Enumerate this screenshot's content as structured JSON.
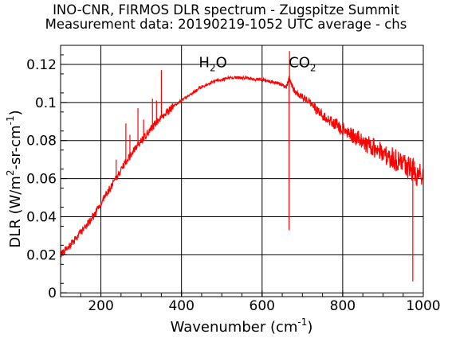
{
  "chart_data": {
    "type": "line",
    "title": "INO-CNR, FIRMOS DLR spectrum - Zugspitze Summit",
    "subtitle": "Measurement data: 20190219-1052 UTC average - chs",
    "xlabel": {
      "text": "Wavenumber (cm",
      "sup": "-1",
      "after": ")"
    },
    "ylabel": {
      "text": "DLR (W/m",
      "sup": "2",
      "after": "-sr-cm",
      "sup2": "-1",
      "after2": ")"
    },
    "xlim": [
      100,
      1000
    ],
    "ylim": [
      -0.002,
      0.13
    ],
    "x_ticks": [
      200,
      400,
      600,
      800,
      1000
    ],
    "x_tick_labels": [
      "200",
      "400",
      "600",
      "800",
      "1000"
    ],
    "y_ticks": [
      0,
      0.02,
      0.04,
      0.06,
      0.08,
      0.1,
      0.12
    ],
    "y_tick_labels": [
      "0",
      "0.02",
      "0.04",
      "0.06",
      "0.08",
      "0.1",
      "0.12"
    ],
    "grid": true,
    "series": [
      {
        "color": "#ff0000",
        "x": [
          100,
          120,
          140,
          160,
          180,
          200,
          220,
          240,
          260,
          280,
          300,
          320,
          340,
          360,
          380,
          400,
          420,
          440,
          460,
          480,
          500,
          520,
          540,
          560,
          580,
          600,
          620,
          640,
          660,
          667,
          680,
          700,
          720,
          740,
          760,
          780,
          800,
          820,
          840,
          860,
          880,
          900,
          920,
          940,
          960,
          980,
          1000
        ],
        "y": [
          0.02,
          0.024,
          0.029,
          0.034,
          0.04,
          0.047,
          0.054,
          0.061,
          0.068,
          0.074,
          0.08,
          0.085,
          0.09,
          0.094,
          0.098,
          0.101,
          0.104,
          0.107,
          0.109,
          0.111,
          0.112,
          0.113,
          0.113,
          0.113,
          0.112,
          0.112,
          0.111,
          0.11,
          0.108,
          0.113,
          0.106,
          0.103,
          0.1,
          0.095,
          0.092,
          0.089,
          0.086,
          0.083,
          0.081,
          0.078,
          0.076,
          0.073,
          0.071,
          0.069,
          0.066,
          0.063,
          0.062
        ],
        "spikes": [
          {
            "x": 238,
            "y": 0.07
          },
          {
            "x": 262,
            "y": 0.089
          },
          {
            "x": 272,
            "y": 0.083
          },
          {
            "x": 292,
            "y": 0.097
          },
          {
            "x": 306,
            "y": 0.091
          },
          {
            "x": 328,
            "y": 0.102
          },
          {
            "x": 338,
            "y": 0.101
          },
          {
            "x": 350,
            "y": 0.117
          },
          {
            "x": 667,
            "y": 0.033
          },
          {
            "x": 668,
            "y": 0.127
          },
          {
            "x": 974,
            "y": 0.006
          },
          {
            "x": 978,
            "y": 0.069
          }
        ]
      }
    ],
    "annotations": [
      {
        "label": "H",
        "sub": "2",
        "after": "O",
        "x": 478,
        "y": 0.1185
      },
      {
        "label": "CO",
        "sub": "2",
        "x": 700,
        "y": 0.1185
      }
    ]
  }
}
